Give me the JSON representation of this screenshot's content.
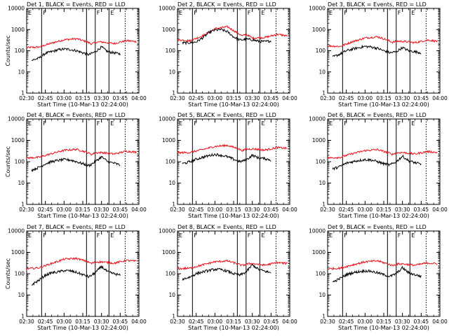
{
  "chart_data": [
    {
      "type": "line",
      "title": "Det 1, BLACK = Events, RED = LLD",
      "xlabel": "Start Time (10-Mar-13 02:24:00)",
      "ylabel": "Counts/sec",
      "yscale": "log",
      "ylim": [
        1,
        10000
      ],
      "xlim": [
        "02:30",
        "04:00"
      ],
      "x_ticks": [
        "02:30",
        "02:45",
        "03:00",
        "03:15",
        "03:30",
        "03:45",
        "04:00"
      ],
      "y_ticks": [
        "1",
        "10",
        "100",
        "1000",
        "10000"
      ],
      "events": {
        "x": [
          "02:34",
          "02:40",
          "02:45",
          "02:50",
          "02:55",
          "03:00",
          "03:05",
          "03:10",
          "03:15",
          "03:20",
          "03:25",
          "03:30",
          "03:35",
          "03:40",
          "03:45"
        ],
        "y": [
          35,
          45,
          75,
          90,
          110,
          120,
          115,
          100,
          80,
          65,
          90,
          150,
          90,
          80,
          70
        ]
      },
      "lld": {
        "x": [
          "02:30",
          "02:40",
          "02:50",
          "03:00",
          "03:10",
          "03:18",
          "03:22",
          "03:25",
          "03:30",
          "03:40",
          "03:50",
          "03:58"
        ],
        "y": [
          140,
          150,
          230,
          330,
          370,
          270,
          210,
          250,
          260,
          220,
          300,
          270
        ]
      },
      "vlines_solid": [
        "02:42",
        "03:18",
        "03:25",
        "03:36"
      ],
      "vlines_dotted": [
        "03:49",
        "03:59"
      ],
      "marker_labels": [
        {
          "text": "E",
          "x": "02:30"
        },
        {
          "text": "F",
          "x": "02:42"
        },
        {
          "text": "F",
          "x": "03:25"
        },
        {
          "text": "E",
          "x": "03:36"
        }
      ]
    },
    {
      "type": "line",
      "title": "Det 2, BLACK = Events, RED = LLD",
      "xlabel": "Start Time (10-Mar-13 02:24:00)",
      "ylabel": "",
      "yscale": "log",
      "ylim": [
        1,
        10000
      ],
      "xlim": [
        "02:30",
        "04:00"
      ],
      "x_ticks": [
        "02:30",
        "02:45",
        "03:00",
        "03:15",
        "03:30",
        "03:45",
        "04:00"
      ],
      "y_ticks": [
        "1",
        "10",
        "100",
        "1000",
        "10000"
      ],
      "events": {
        "x": [
          "02:34",
          "02:40",
          "02:45",
          "02:50",
          "02:55",
          "03:00",
          "03:05",
          "03:10",
          "03:15",
          "03:20",
          "03:25",
          "03:30",
          "03:35",
          "03:40",
          "03:45"
        ],
        "y": [
          230,
          240,
          260,
          400,
          700,
          950,
          1000,
          800,
          450,
          320,
          350,
          330,
          280,
          270,
          290
        ]
      },
      "lld": {
        "x": [
          "02:30",
          "02:40",
          "02:50",
          "03:00",
          "03:10",
          "03:18",
          "03:22",
          "03:25",
          "03:30",
          "03:40",
          "03:50",
          "03:58"
        ],
        "y": [
          330,
          300,
          500,
          1100,
          1350,
          700,
          500,
          600,
          400,
          420,
          600,
          500
        ]
      },
      "vlines_solid": [
        "02:42",
        "03:18",
        "03:25",
        "03:36"
      ],
      "vlines_dotted": [
        "03:49",
        "03:59"
      ],
      "marker_labels": [
        {
          "text": "E",
          "x": "02:30"
        },
        {
          "text": "F",
          "x": "02:42"
        },
        {
          "text": "F",
          "x": "03:25"
        },
        {
          "text": "E",
          "x": "03:36"
        }
      ]
    },
    {
      "type": "line",
      "title": "Det 3, BLACK = Events, RED = LLD",
      "xlabel": "Start Time (10-Mar-13 02:24:00)",
      "ylabel": "",
      "yscale": "log",
      "ylim": [
        1,
        10000
      ],
      "xlim": [
        "02:30",
        "04:00"
      ],
      "x_ticks": [
        "02:30",
        "02:45",
        "03:00",
        "03:15",
        "03:30",
        "03:45",
        "04:00"
      ],
      "y_ticks": [
        "1",
        "10",
        "100",
        "1000",
        "10000"
      ],
      "events": {
        "x": [
          "02:34",
          "02:40",
          "02:45",
          "02:50",
          "02:55",
          "03:00",
          "03:05",
          "03:10",
          "03:15",
          "03:20",
          "03:25",
          "03:30",
          "03:35",
          "03:40",
          "03:45"
        ],
        "y": [
          50,
          70,
          100,
          120,
          140,
          160,
          150,
          130,
          100,
          80,
          90,
          140,
          100,
          90,
          80
        ]
      },
      "lld": {
        "x": [
          "02:30",
          "02:40",
          "02:50",
          "03:00",
          "03:10",
          "03:18",
          "03:22",
          "03:25",
          "03:30",
          "03:40",
          "03:50",
          "03:58"
        ],
        "y": [
          170,
          160,
          270,
          400,
          460,
          320,
          250,
          280,
          280,
          240,
          320,
          280
        ]
      },
      "vlines_solid": [
        "02:42",
        "03:18",
        "03:25",
        "03:36"
      ],
      "vlines_dotted": [
        "03:49",
        "03:59"
      ],
      "marker_labels": [
        {
          "text": "E",
          "x": "02:30"
        },
        {
          "text": "F",
          "x": "02:42"
        },
        {
          "text": "F",
          "x": "03:25"
        },
        {
          "text": "E",
          "x": "03:36"
        }
      ]
    },
    {
      "type": "line",
      "title": "Det 4, BLACK = Events, RED = LLD",
      "xlabel": "Start Time (10-Mar-13 02:24:00)",
      "ylabel": "Counts/sec",
      "yscale": "log",
      "ylim": [
        1,
        10000
      ],
      "xlim": [
        "02:30",
        "04:00"
      ],
      "x_ticks": [
        "02:30",
        "02:45",
        "03:00",
        "03:15",
        "03:30",
        "03:45",
        "04:00"
      ],
      "y_ticks": [
        "1",
        "10",
        "100",
        "1000",
        "10000"
      ],
      "events": {
        "x": [
          "02:34",
          "02:40",
          "02:45",
          "02:50",
          "02:55",
          "03:00",
          "03:05",
          "03:10",
          "03:15",
          "03:20",
          "03:25",
          "03:30",
          "03:35",
          "03:40",
          "03:45"
        ],
        "y": [
          40,
          55,
          80,
          100,
          115,
          125,
          120,
          100,
          80,
          65,
          100,
          170,
          100,
          85,
          70
        ]
      },
      "lld": {
        "x": [
          "02:30",
          "02:40",
          "02:50",
          "03:00",
          "03:10",
          "03:18",
          "03:22",
          "03:25",
          "03:30",
          "03:40",
          "03:50",
          "03:58"
        ],
        "y": [
          150,
          160,
          240,
          340,
          380,
          280,
          220,
          260,
          270,
          230,
          310,
          280
        ]
      },
      "vlines_solid": [
        "02:42",
        "03:18",
        "03:25",
        "03:36"
      ],
      "vlines_dotted": [
        "03:49",
        "03:59"
      ],
      "marker_labels": [
        {
          "text": "E",
          "x": "02:30"
        },
        {
          "text": "F",
          "x": "02:42"
        },
        {
          "text": "F",
          "x": "03:25"
        },
        {
          "text": "E",
          "x": "03:36"
        }
      ]
    },
    {
      "type": "line",
      "title": "Det 5, BLACK = Events, RED = LLD",
      "xlabel": "Start Time (10-Mar-13 02:24:00)",
      "ylabel": "",
      "yscale": "log",
      "ylim": [
        1,
        10000
      ],
      "xlim": [
        "02:30",
        "04:00"
      ],
      "x_ticks": [
        "02:30",
        "02:45",
        "03:00",
        "03:15",
        "03:30",
        "03:45",
        "04:00"
      ],
      "y_ticks": [
        "1",
        "10",
        "100",
        "1000",
        "10000"
      ],
      "events": {
        "x": [
          "02:34",
          "02:40",
          "02:45",
          "02:50",
          "02:55",
          "03:00",
          "03:05",
          "03:10",
          "03:15",
          "03:20",
          "03:25",
          "03:30",
          "03:35",
          "03:40",
          "03:45"
        ],
        "y": [
          80,
          100,
          130,
          160,
          190,
          220,
          200,
          170,
          130,
          100,
          120,
          200,
          150,
          140,
          120
        ]
      },
      "lld": {
        "x": [
          "02:30",
          "02:40",
          "02:50",
          "03:00",
          "03:10",
          "03:18",
          "03:22",
          "03:25",
          "03:30",
          "03:40",
          "03:50",
          "03:58"
        ],
        "y": [
          260,
          270,
          370,
          520,
          580,
          420,
          330,
          380,
          400,
          350,
          460,
          420
        ]
      },
      "vlines_solid": [
        "02:42",
        "03:18",
        "03:25",
        "03:36"
      ],
      "vlines_dotted": [
        "03:49",
        "03:59"
      ],
      "marker_labels": [
        {
          "text": "E",
          "x": "02:30"
        },
        {
          "text": "F",
          "x": "02:42"
        },
        {
          "text": "F",
          "x": "03:25"
        },
        {
          "text": "E",
          "x": "03:36"
        }
      ]
    },
    {
      "type": "line",
      "title": "Det 6, BLACK = Events, RED = LLD",
      "xlabel": "Start Time (10-Mar-13 02:24:00)",
      "ylabel": "",
      "yscale": "log",
      "ylim": [
        1,
        10000
      ],
      "xlim": [
        "02:30",
        "04:00"
      ],
      "x_ticks": [
        "02:30",
        "02:45",
        "03:00",
        "03:15",
        "03:30",
        "03:45",
        "04:00"
      ],
      "y_ticks": [
        "1",
        "10",
        "100",
        "1000",
        "10000"
      ],
      "events": {
        "x": [
          "02:34",
          "02:40",
          "02:45",
          "02:50",
          "02:55",
          "03:00",
          "03:05",
          "03:10",
          "03:15",
          "03:20",
          "03:25",
          "03:30",
          "03:35",
          "03:40",
          "03:45"
        ],
        "y": [
          45,
          60,
          85,
          100,
          115,
          125,
          120,
          100,
          80,
          70,
          100,
          180,
          110,
          90,
          75
        ]
      },
      "lld": {
        "x": [
          "02:30",
          "02:40",
          "02:50",
          "03:00",
          "03:10",
          "03:18",
          "03:22",
          "03:25",
          "03:30",
          "03:40",
          "03:50",
          "03:58"
        ],
        "y": [
          150,
          160,
          240,
          330,
          370,
          270,
          220,
          260,
          270,
          230,
          300,
          270
        ]
      },
      "vlines_solid": [
        "02:42",
        "03:18",
        "03:25",
        "03:36"
      ],
      "vlines_dotted": [
        "03:49",
        "03:59"
      ],
      "marker_labels": [
        {
          "text": "E",
          "x": "02:30"
        },
        {
          "text": "F",
          "x": "02:42"
        },
        {
          "text": "F",
          "x": "03:25"
        },
        {
          "text": "E",
          "x": "03:36"
        }
      ]
    },
    {
      "type": "line",
      "title": "Det 7, BLACK = Events, RED = LLD",
      "xlabel": "Start Time (10-Mar-13 02:24:00)",
      "ylabel": "Counts/sec",
      "yscale": "log",
      "ylim": [
        1,
        10000
      ],
      "xlim": [
        "02:30",
        "04:00"
      ],
      "x_ticks": [
        "02:30",
        "02:45",
        "03:00",
        "03:15",
        "03:30",
        "03:45",
        "04:00"
      ],
      "y_ticks": [
        "1",
        "10",
        "100",
        "1000",
        "10000"
      ],
      "events": {
        "x": [
          "02:34",
          "02:40",
          "02:45",
          "02:50",
          "02:55",
          "03:00",
          "03:05",
          "03:10",
          "03:15",
          "03:20",
          "03:25",
          "03:30",
          "03:35",
          "03:40",
          "03:45"
        ],
        "y": [
          30,
          50,
          85,
          110,
          120,
          140,
          135,
          115,
          90,
          70,
          110,
          220,
          120,
          100,
          85
        ]
      },
      "lld": {
        "x": [
          "02:30",
          "02:40",
          "02:50",
          "03:00",
          "03:10",
          "03:18",
          "03:22",
          "03:25",
          "03:30",
          "03:40",
          "03:50",
          "03:58"
        ],
        "y": [
          170,
          190,
          300,
          480,
          520,
          380,
          300,
          350,
          360,
          310,
          420,
          380
        ]
      },
      "vlines_solid": [
        "02:42",
        "03:18",
        "03:25",
        "03:36"
      ],
      "vlines_dotted": [
        "03:49",
        "03:59"
      ],
      "marker_labels": [
        {
          "text": "E",
          "x": "02:30"
        },
        {
          "text": "F",
          "x": "02:42"
        },
        {
          "text": "F",
          "x": "03:25"
        },
        {
          "text": "E",
          "x": "03:36"
        }
      ]
    },
    {
      "type": "line",
      "title": "Det 8, BLACK = Events, RED = LLD",
      "xlabel": "Start Time (10-Mar-13 02:24:00)",
      "ylabel": "",
      "yscale": "log",
      "ylim": [
        1,
        10000
      ],
      "xlim": [
        "02:30",
        "04:00"
      ],
      "x_ticks": [
        "02:30",
        "02:45",
        "03:00",
        "03:15",
        "03:30",
        "03:45",
        "04:00"
      ],
      "y_ticks": [
        "1",
        "10",
        "100",
        "1000",
        "10000"
      ],
      "events": {
        "x": [
          "02:34",
          "02:40",
          "02:45",
          "02:50",
          "02:55",
          "03:00",
          "03:05",
          "03:10",
          "03:15",
          "03:20",
          "03:25",
          "03:30",
          "03:35",
          "03:40",
          "03:45"
        ],
        "y": [
          55,
          70,
          100,
          120,
          140,
          160,
          155,
          130,
          100,
          85,
          120,
          260,
          160,
          130,
          110
        ]
      },
      "lld": {
        "x": [
          "02:30",
          "02:40",
          "02:50",
          "03:00",
          "03:10",
          "03:18",
          "03:22",
          "03:25",
          "03:30",
          "03:40",
          "03:50",
          "03:58"
        ],
        "y": [
          170,
          180,
          260,
          360,
          400,
          290,
          240,
          280,
          300,
          250,
          330,
          300
        ]
      },
      "vlines_solid": [
        "02:42",
        "03:18",
        "03:25",
        "03:36"
      ],
      "vlines_dotted": [
        "03:49",
        "03:59"
      ],
      "marker_labels": [
        {
          "text": "E",
          "x": "02:30"
        },
        {
          "text": "F",
          "x": "02:42"
        },
        {
          "text": "F",
          "x": "03:25"
        },
        {
          "text": "E",
          "x": "03:36"
        }
      ]
    },
    {
      "type": "line",
      "title": "Det 9, BLACK = Events, RED = LLD",
      "xlabel": "Start Time (10-Mar-13 02:24:00)",
      "ylabel": "",
      "yscale": "log",
      "ylim": [
        1,
        10000
      ],
      "xlim": [
        "02:30",
        "04:00"
      ],
      "x_ticks": [
        "02:30",
        "02:45",
        "03:00",
        "03:15",
        "03:30",
        "03:45",
        "04:00"
      ],
      "y_ticks": [
        "1",
        "10",
        "100",
        "1000",
        "10000"
      ],
      "events": {
        "x": [
          "02:34",
          "02:40",
          "02:45",
          "02:50",
          "02:55",
          "03:00",
          "03:05",
          "03:10",
          "03:15",
          "03:20",
          "03:25",
          "03:30",
          "03:35",
          "03:40",
          "03:45"
        ],
        "y": [
          40,
          60,
          90,
          110,
          125,
          135,
          130,
          110,
          90,
          75,
          100,
          190,
          110,
          90,
          75
        ]
      },
      "lld": {
        "x": [
          "02:30",
          "02:40",
          "02:50",
          "03:00",
          "03:10",
          "03:18",
          "03:22",
          "03:25",
          "03:30",
          "03:40",
          "03:50",
          "03:58"
        ],
        "y": [
          170,
          180,
          260,
          360,
          400,
          290,
          240,
          280,
          290,
          250,
          320,
          290
        ]
      },
      "vlines_solid": [
        "02:42",
        "03:18",
        "03:25",
        "03:36"
      ],
      "vlines_dotted": [
        "03:49",
        "03:59"
      ],
      "marker_labels": [
        {
          "text": "E",
          "x": "02:30"
        },
        {
          "text": "F",
          "x": "02:42"
        },
        {
          "text": "F",
          "x": "03:25"
        },
        {
          "text": "E",
          "x": "03:36"
        }
      ]
    }
  ],
  "colors": {
    "events": "#000000",
    "lld": "#e8141e",
    "axes": "#000000",
    "background": "#ffffff"
  }
}
